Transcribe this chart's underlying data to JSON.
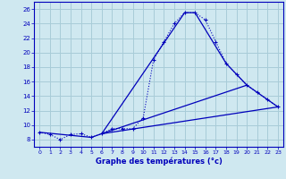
{
  "title": "Graphe des températures (°c)",
  "background_color": "#cfe8f0",
  "grid_color": "#a8ccd8",
  "line_color": "#0000bb",
  "xlim": [
    -0.5,
    23.5
  ],
  "ylim": [
    7.0,
    27.0
  ],
  "xticks": [
    0,
    1,
    2,
    3,
    4,
    5,
    6,
    7,
    8,
    9,
    10,
    11,
    12,
    13,
    14,
    15,
    16,
    17,
    18,
    19,
    20,
    21,
    22,
    23
  ],
  "yticks": [
    8,
    10,
    12,
    14,
    16,
    18,
    20,
    22,
    24,
    26
  ],
  "main_x": [
    0,
    1,
    2,
    3,
    4,
    5,
    6,
    7,
    8,
    9,
    10,
    11,
    12,
    13,
    14,
    15,
    16,
    17,
    18,
    19,
    20,
    21,
    22,
    23
  ],
  "main_y": [
    9.0,
    8.7,
    8.0,
    8.7,
    8.8,
    8.3,
    8.8,
    9.5,
    9.5,
    9.5,
    11.0,
    19.0,
    21.5,
    24.0,
    25.5,
    25.5,
    24.5,
    21.5,
    18.5,
    17.0,
    15.5,
    14.5,
    13.5,
    12.5
  ],
  "poly_x": [
    0,
    5,
    6,
    14,
    15,
    18,
    20,
    23
  ],
  "poly_y": [
    9.0,
    8.3,
    8.8,
    25.5,
    25.5,
    18.5,
    15.5,
    12.5
  ],
  "line3_x": [
    6,
    23
  ],
  "line3_y": [
    8.8,
    12.5
  ],
  "line4_x": [
    6,
    20
  ],
  "line4_y": [
    8.8,
    15.5
  ]
}
